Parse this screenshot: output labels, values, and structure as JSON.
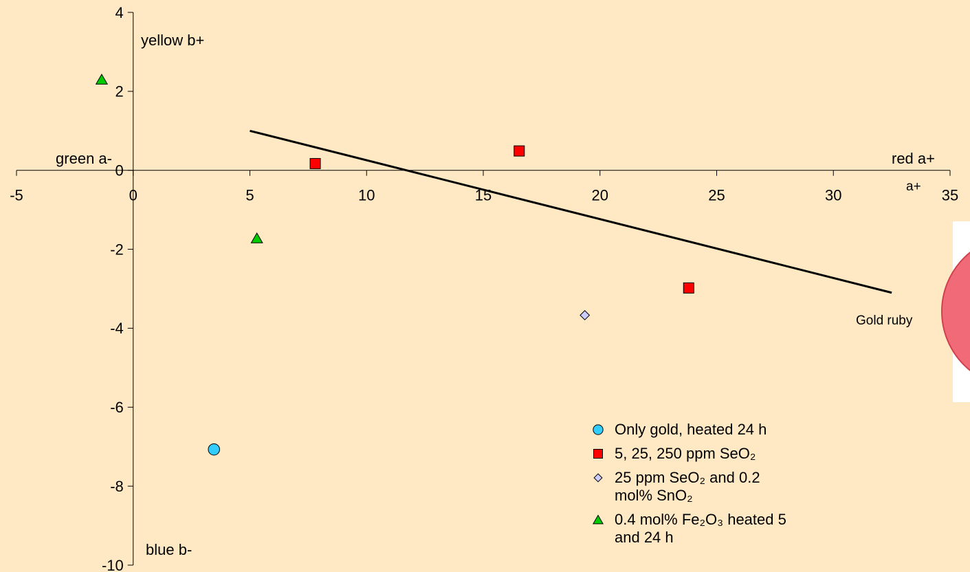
{
  "chart_data": {
    "type": "scatter",
    "xlim": [
      -5,
      35
    ],
    "xticks": [
      -5,
      0,
      5,
      10,
      15,
      20,
      25,
      30,
      35
    ],
    "ylim": [
      -10,
      4
    ],
    "yticks": [
      4,
      2,
      0,
      -2,
      -4,
      -6,
      -8,
      -10
    ],
    "annotations": {
      "yellow": "yellow b+",
      "blue": "blue b-",
      "green": "green a-",
      "red": "red a+",
      "a_axis": "a+",
      "trend": "Gold ruby"
    },
    "trendline": {
      "x": [
        5,
        32.5
      ],
      "y": [
        1,
        -3.1
      ],
      "color": "#000000"
    },
    "series": [
      {
        "name": "Only gold, heated 24 h",
        "marker": "circle",
        "color": "#33ccff",
        "x": [
          3.46
        ],
        "y": [
          -7.07
        ]
      },
      {
        "name": "5, 25, 250 ppm SeO₂",
        "marker": "square",
        "color": "#ff0000",
        "x": [
          7.8,
          16.54,
          23.8
        ],
        "y": [
          0.17,
          0.49,
          -2.98
        ]
      },
      {
        "name": "25 ppm SeO₂ and 0.2 mol% SnO₂",
        "marker": "diamond",
        "color": "#ccccff",
        "x": [
          19.35
        ],
        "y": [
          -3.67
        ]
      },
      {
        "name": "0.4 mol% Fe₂O₃  heated  5 and 24 h",
        "marker": "triangle",
        "color": "#00cc00",
        "x": [
          -1.35,
          5.3
        ],
        "y": [
          2.3,
          -1.72
        ]
      }
    ]
  }
}
